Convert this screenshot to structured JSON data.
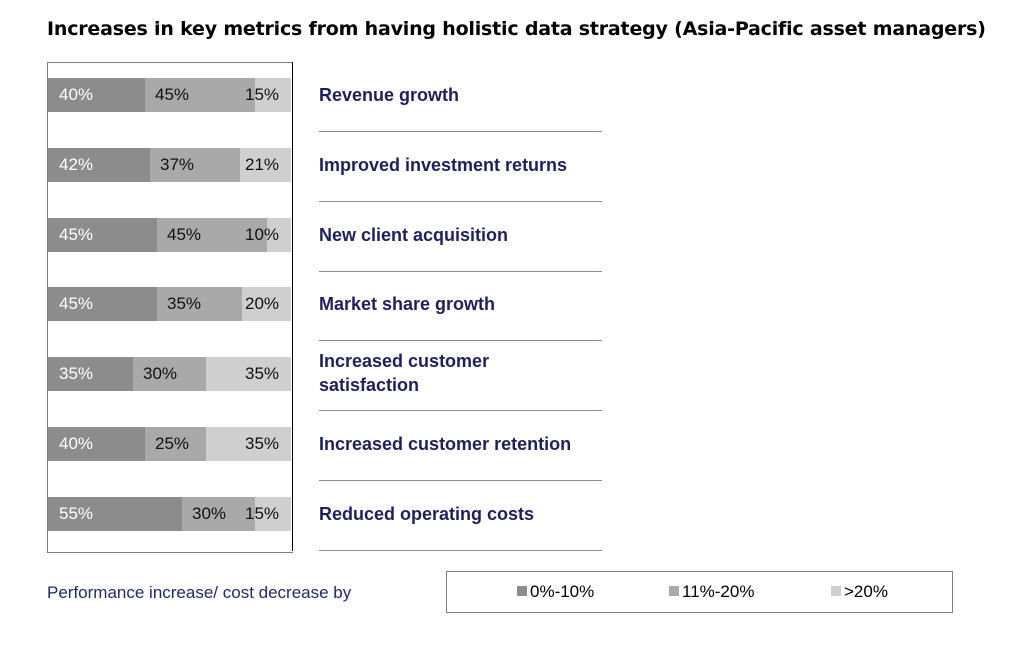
{
  "chart_data": {
    "type": "bar",
    "orientation": "horizontal",
    "stacked": true,
    "title": "Increases in key metrics from having holistic data strategy (Asia-Pacific asset managers)",
    "categories": [
      "Revenue growth",
      "Improved investment returns",
      "New client acquisition",
      "Market share growth",
      "Increased customer satisfaction",
      "Increased customer retention",
      "Reduced operating costs"
    ],
    "series": [
      {
        "name": "0%-10%",
        "values": [
          40,
          42,
          45,
          45,
          35,
          40,
          55
        ],
        "labels": [
          "40%",
          "42%",
          "45%",
          "45%",
          "35%",
          "40%",
          "55%"
        ]
      },
      {
        "name": "11%-20%",
        "values": [
          45,
          37,
          45,
          35,
          30,
          25,
          30
        ],
        "labels": [
          "45%",
          "37%",
          "45%",
          "35%",
          "30%",
          "25%",
          "30%"
        ]
      },
      {
        "name": ">20%",
        "values": [
          15,
          21,
          10,
          20,
          35,
          35,
          15
        ],
        "labels": [
          "15%",
          "21%",
          "10%",
          "20%",
          "35%",
          "35%",
          "15%"
        ]
      }
    ],
    "xlim": [
      0,
      100
    ],
    "legend_title": "Performance increase/ cost decrease by",
    "legend_position": "bottom",
    "grid": false
  },
  "colors": {
    "series": [
      "#8c8c8c",
      "#a9a9a9",
      "#cfcfcf"
    ],
    "label_text": [
      "#ffffff",
      "#111111",
      "#111111"
    ],
    "category_text": "#1f1f5c"
  }
}
